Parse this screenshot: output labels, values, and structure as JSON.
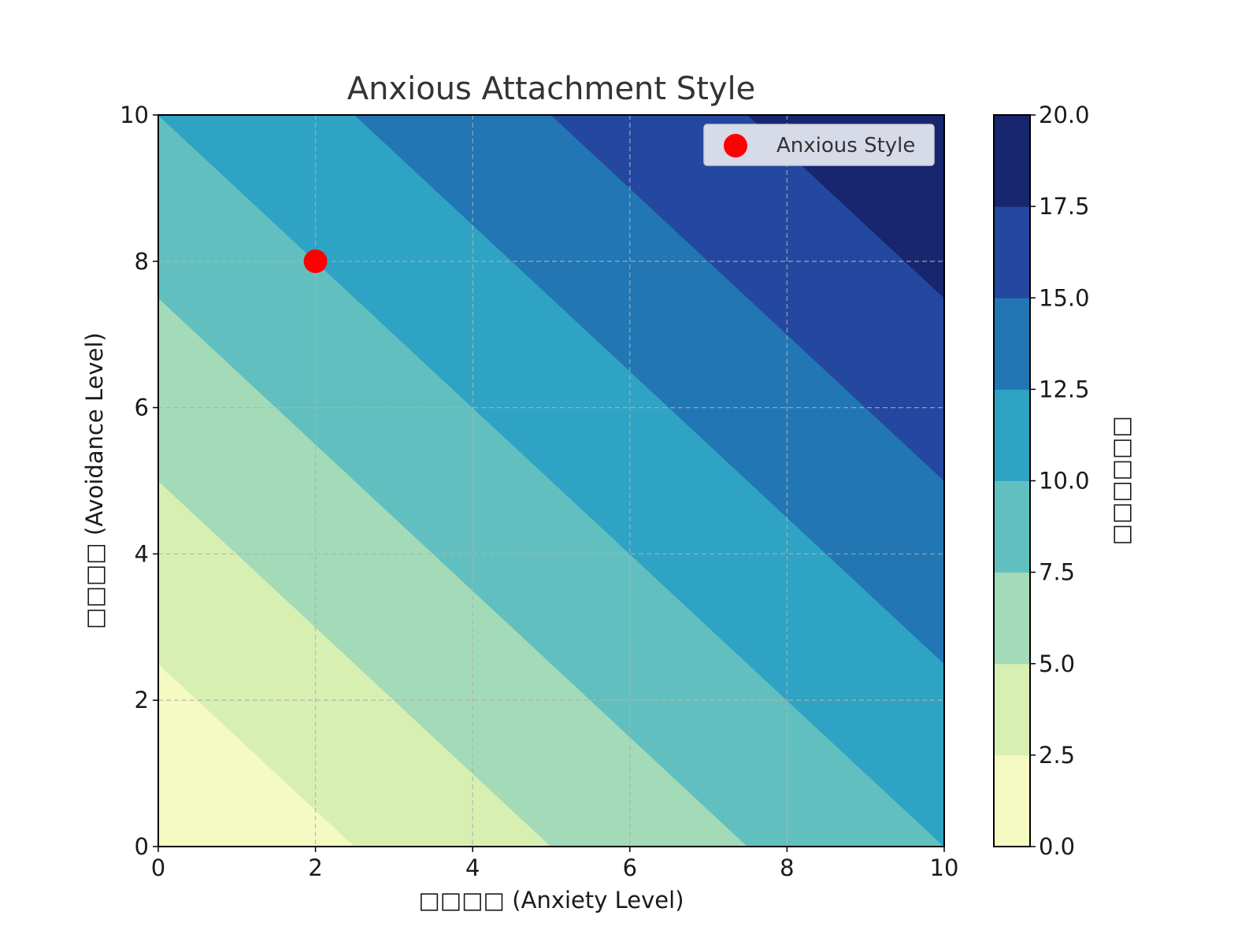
{
  "chart_data": {
    "type": "contour",
    "title": "Anxious Attachment Style",
    "xlabel": "□□□□ (Anxiety Level)",
    "ylabel": "□□□□ (Avoidance Level)",
    "colorbar_label": "□□□□□□",
    "xlim": [
      0,
      10
    ],
    "ylim": [
      0,
      10
    ],
    "x_ticks": [
      "0",
      "2",
      "4",
      "6",
      "8",
      "10"
    ],
    "y_ticks": [
      "0",
      "2",
      "4",
      "6",
      "8",
      "10"
    ],
    "grid": true,
    "z_function": "x + y",
    "levels": [
      0,
      2.5,
      5,
      7.5,
      10,
      12.5,
      15,
      17.5,
      20
    ],
    "level_labels": [
      "0.0",
      "2.5",
      "5.0",
      "7.5",
      "10.0",
      "12.5",
      "15.0",
      "17.5",
      "20.0"
    ],
    "level_colors": [
      "#f5fac3",
      "#d8efb2",
      "#a3dab8",
      "#61c0bf",
      "#2fa3c3",
      "#2176b3",
      "#2448a0",
      "#18266f"
    ],
    "series": [
      {
        "name": "Anxious Style",
        "type": "scatter",
        "x": [
          2
        ],
        "y": [
          8
        ],
        "color": "#ff0000"
      }
    ],
    "legend_position": "upper right"
  }
}
